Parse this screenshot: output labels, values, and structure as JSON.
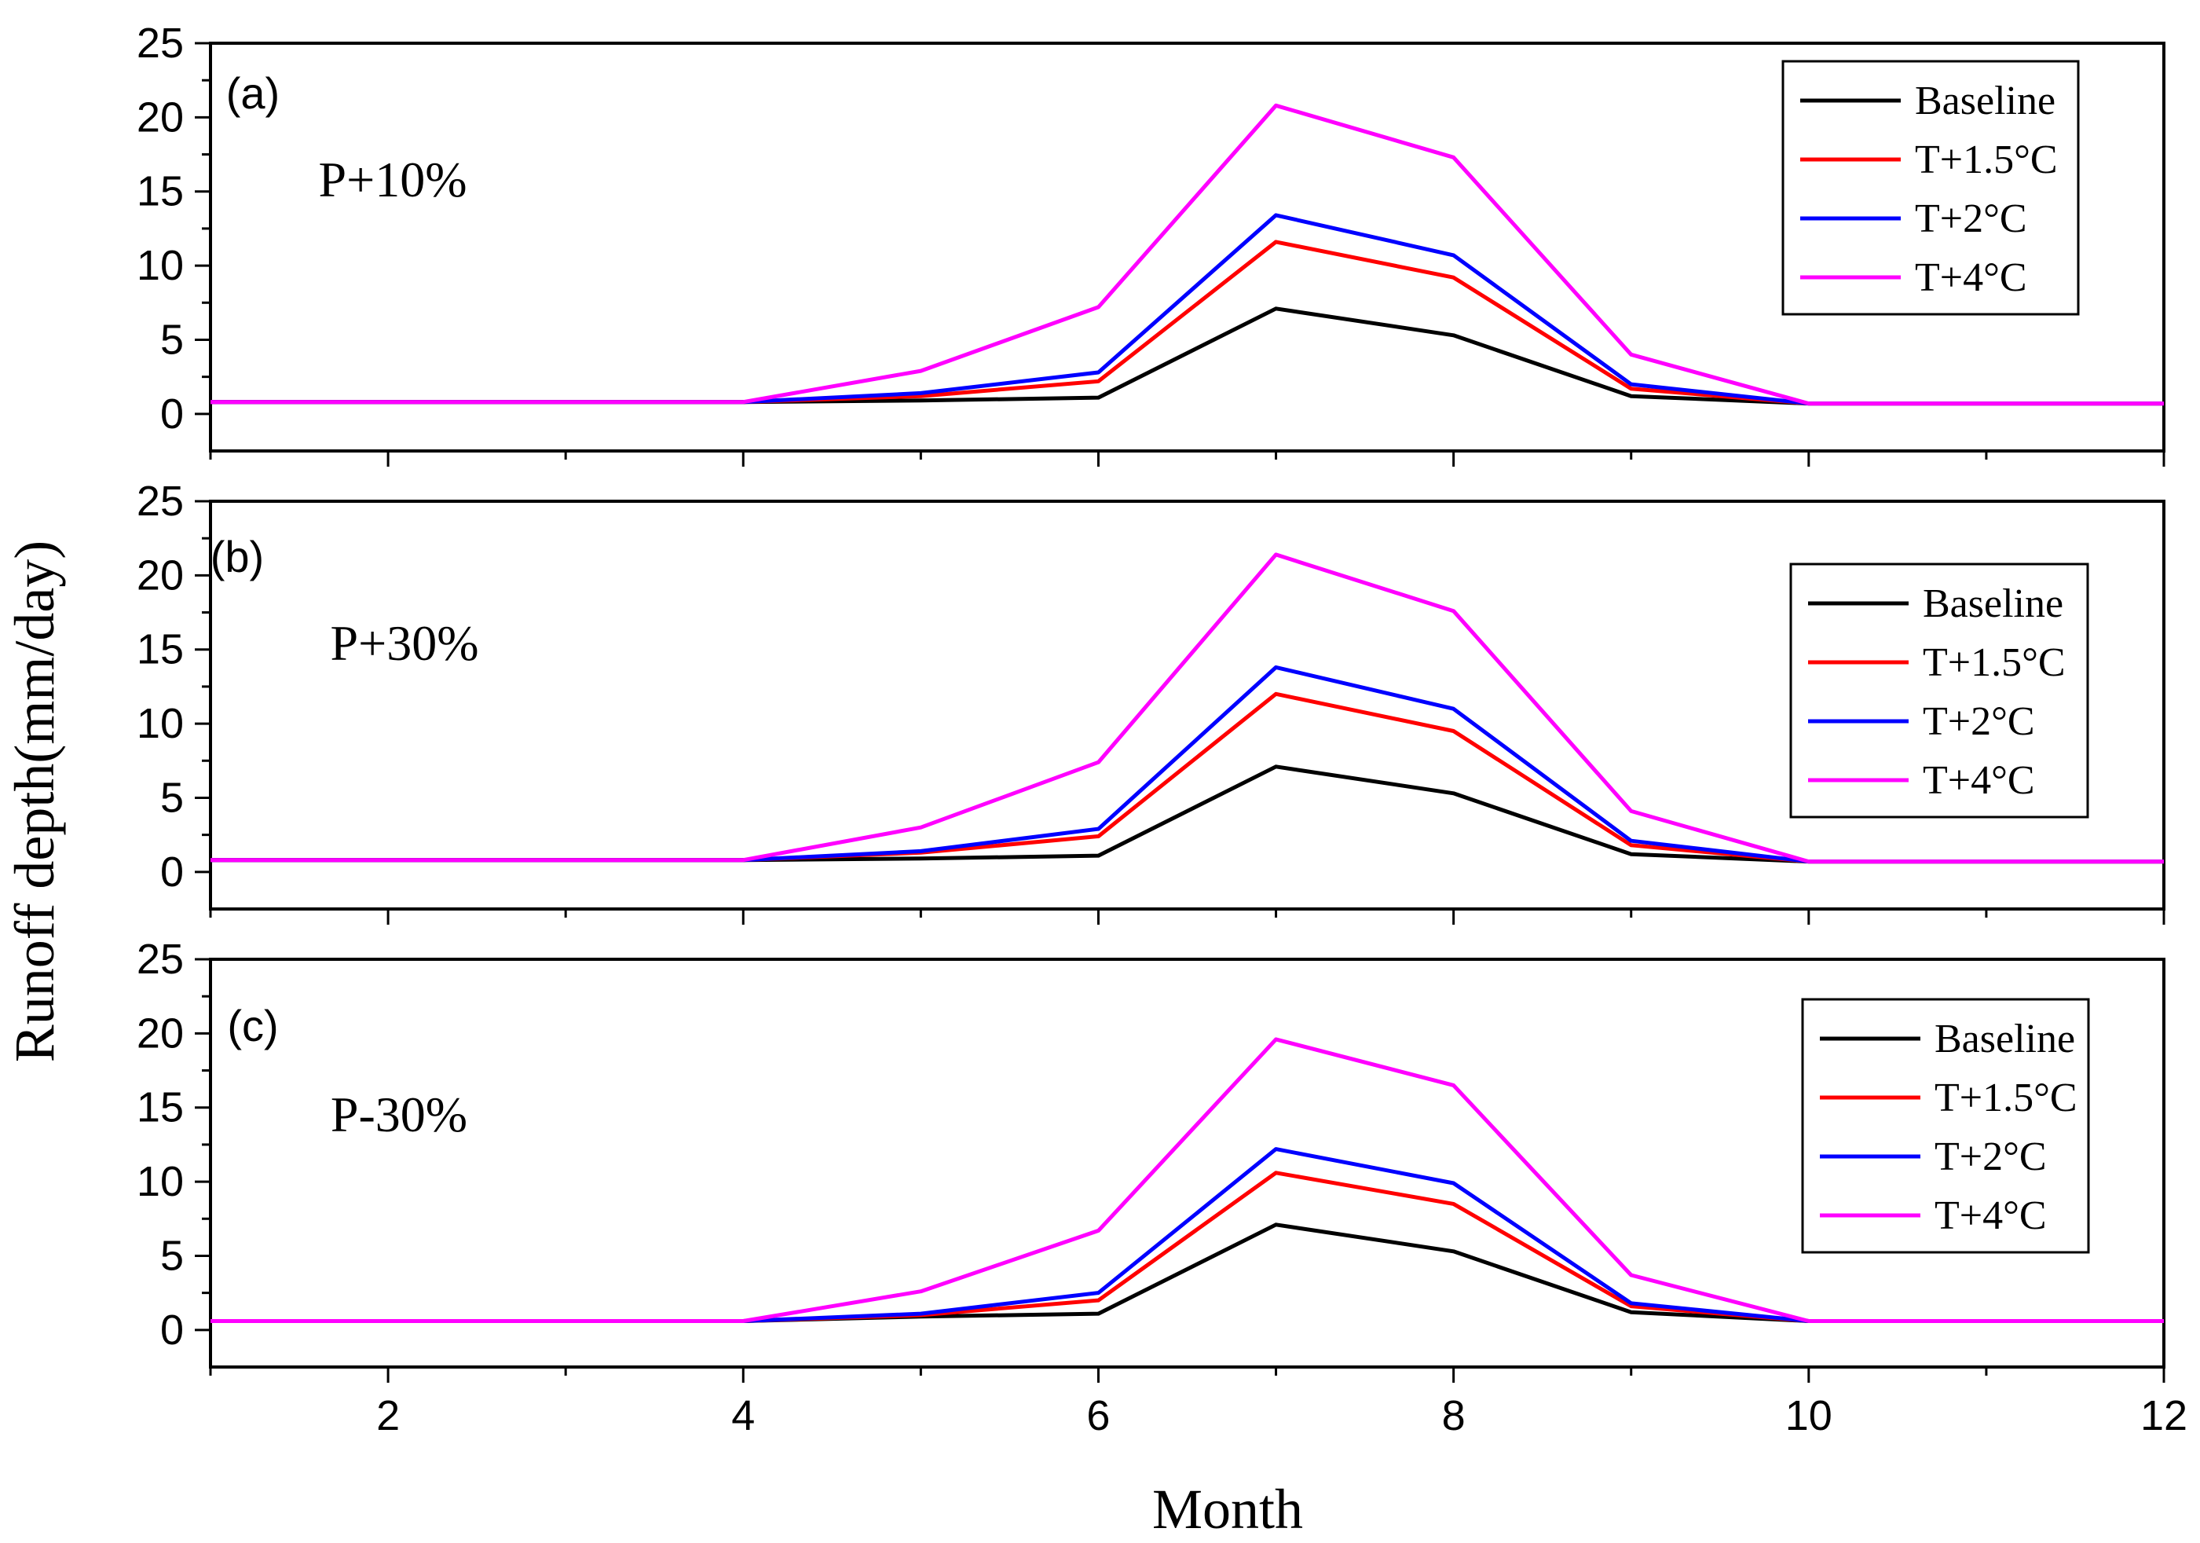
{
  "chart_data": {
    "type": "line",
    "ylabel": "Runoff depth(mm/day)",
    "xlabel": "Month",
    "xlim": [
      1,
      12
    ],
    "ylim": [
      -2.5,
      25
    ],
    "xticks": [
      2,
      4,
      6,
      8,
      10,
      12
    ],
    "yticks": [
      0,
      5,
      10,
      15,
      20,
      25
    ],
    "colors": {
      "Baseline": "#000000",
      "T+1.5°C": "#ff0000",
      "T+2°C": "#0000ff",
      "T+4°C": "#ff00ff"
    },
    "panels": [
      {
        "label": "(a)",
        "scenario": "P+10%",
        "legend_position": "top-right",
        "x": [
          1,
          2,
          3,
          4,
          5,
          6,
          7,
          8,
          9,
          10,
          11,
          12
        ],
        "series": [
          {
            "name": "Baseline",
            "values": [
              0.8,
              0.8,
              0.8,
              0.8,
              0.9,
              1.1,
              7.1,
              5.3,
              1.2,
              0.7,
              0.7,
              0.7
            ]
          },
          {
            "name": "T+1.5°C",
            "values": [
              0.8,
              0.8,
              0.8,
              0.8,
              1.2,
              2.2,
              11.6,
              9.2,
              1.7,
              0.7,
              0.7,
              0.7
            ]
          },
          {
            "name": "T+2°C",
            "values": [
              0.8,
              0.8,
              0.8,
              0.8,
              1.4,
              2.8,
              13.4,
              10.7,
              2.0,
              0.7,
              0.7,
              0.7
            ]
          },
          {
            "name": "T+4°C",
            "values": [
              0.8,
              0.8,
              0.8,
              0.8,
              2.9,
              7.2,
              20.8,
              17.3,
              4.0,
              0.7,
              0.7,
              0.7
            ]
          }
        ]
      },
      {
        "label": "(b)",
        "scenario": "P+30%",
        "legend_position": "right",
        "x": [
          1,
          2,
          3,
          4,
          5,
          6,
          7,
          8,
          9,
          10,
          11,
          12
        ],
        "series": [
          {
            "name": "Baseline",
            "values": [
              0.8,
              0.8,
              0.8,
              0.8,
              0.9,
              1.1,
              7.1,
              5.3,
              1.2,
              0.7,
              0.7,
              0.7
            ]
          },
          {
            "name": "T+1.5°C",
            "values": [
              0.8,
              0.8,
              0.8,
              0.8,
              1.3,
              2.4,
              12.0,
              9.5,
              1.8,
              0.7,
              0.7,
              0.7
            ]
          },
          {
            "name": "T+2°C",
            "values": [
              0.8,
              0.8,
              0.8,
              0.8,
              1.4,
              2.9,
              13.8,
              11.0,
              2.1,
              0.7,
              0.7,
              0.7
            ]
          },
          {
            "name": "T+4°C",
            "values": [
              0.8,
              0.8,
              0.8,
              0.8,
              3.0,
              7.4,
              21.4,
              17.6,
              4.1,
              0.7,
              0.7,
              0.7
            ]
          }
        ]
      },
      {
        "label": "(c)",
        "scenario": "P-30%",
        "legend_position": "right",
        "x": [
          1,
          2,
          3,
          4,
          5,
          6,
          7,
          8,
          9,
          10,
          11,
          12
        ],
        "series": [
          {
            "name": "Baseline",
            "values": [
              0.6,
              0.6,
              0.6,
              0.6,
              0.9,
              1.1,
              7.1,
              5.3,
              1.2,
              0.6,
              0.6,
              0.6
            ]
          },
          {
            "name": "T+1.5°C",
            "values": [
              0.6,
              0.6,
              0.6,
              0.6,
              1.0,
              2.0,
              10.6,
              8.5,
              1.6,
              0.6,
              0.6,
              0.6
            ]
          },
          {
            "name": "T+2°C",
            "values": [
              0.6,
              0.6,
              0.6,
              0.6,
              1.1,
              2.5,
              12.2,
              9.9,
              1.8,
              0.6,
              0.6,
              0.6
            ]
          },
          {
            "name": "T+4°C",
            "values": [
              0.6,
              0.6,
              0.6,
              0.6,
              2.6,
              6.7,
              19.6,
              16.5,
              3.7,
              0.6,
              0.6,
              0.6
            ]
          }
        ]
      }
    ]
  }
}
